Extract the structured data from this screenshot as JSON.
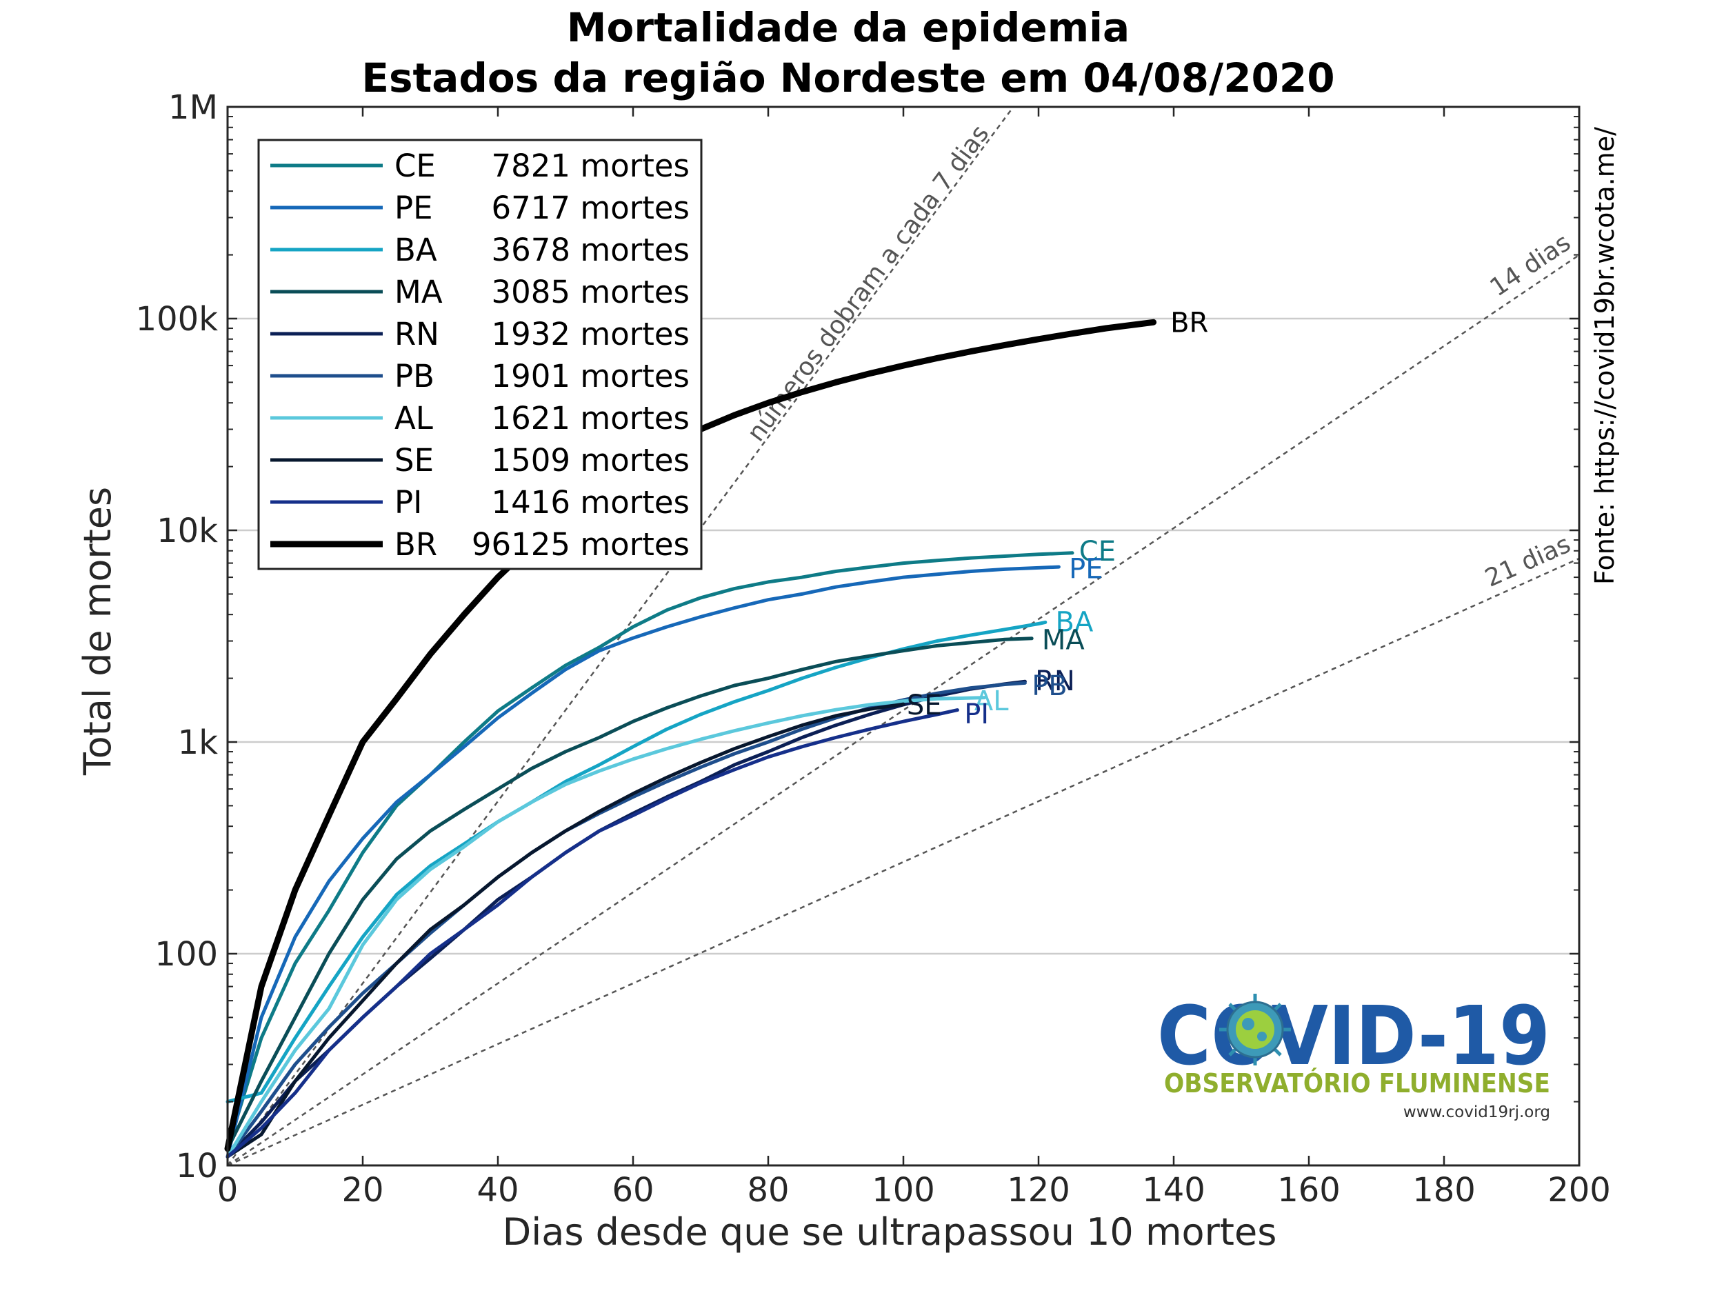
{
  "chart_data": {
    "type": "line",
    "title": "Mortalidade da epidemia",
    "subtitle": "Estados da região Nordeste em 04/08/2020",
    "xlabel": "Dias desde que se ultrapassou 10 mortes",
    "ylabel": "Total de mortes",
    "xlim": [
      0,
      200
    ],
    "ylim": [
      10,
      1000000
    ],
    "yscale": "log",
    "xticks": [
      0,
      20,
      40,
      60,
      80,
      100,
      120,
      140,
      160,
      180,
      200
    ],
    "xtick_labels": [
      "0",
      "20",
      "40",
      "60",
      "80",
      "100",
      "120",
      "140",
      "160",
      "180",
      "200"
    ],
    "yticks": [
      10,
      100,
      1000,
      10000,
      100000,
      1000000
    ],
    "ytick_labels": [
      "10",
      "100",
      "1k",
      "10k",
      "100k",
      "1M"
    ],
    "grid": "horizontal",
    "legend_position": "top-left",
    "series": [
      {
        "name": "CE",
        "label": "7821 mortes",
        "color": "#0e7b87",
        "width": 5,
        "x": [
          0,
          5,
          10,
          15,
          20,
          25,
          30,
          35,
          40,
          45,
          50,
          55,
          60,
          65,
          70,
          75,
          80,
          85,
          90,
          95,
          100,
          105,
          110,
          115,
          120,
          125
        ],
        "y": [
          12,
          40,
          90,
          160,
          300,
          500,
          700,
          1000,
          1400,
          1800,
          2300,
          2800,
          3500,
          4200,
          4800,
          5300,
          5700,
          6000,
          6400,
          6700,
          7000,
          7200,
          7400,
          7550,
          7700,
          7821
        ]
      },
      {
        "name": "PE",
        "label": "6717 mortes",
        "color": "#1668b8",
        "width": 5,
        "x": [
          0,
          5,
          10,
          15,
          20,
          25,
          30,
          35,
          40,
          45,
          50,
          55,
          60,
          65,
          70,
          75,
          80,
          85,
          90,
          95,
          100,
          105,
          110,
          115,
          120,
          123
        ],
        "y": [
          11,
          50,
          120,
          220,
          350,
          520,
          700,
          950,
          1300,
          1700,
          2200,
          2700,
          3100,
          3500,
          3900,
          4300,
          4700,
          5000,
          5400,
          5700,
          6000,
          6200,
          6400,
          6550,
          6650,
          6717
        ]
      },
      {
        "name": "BA",
        "label": "3678 mortes",
        "color": "#15a4c4",
        "width": 5,
        "x": [
          0,
          5,
          10,
          15,
          20,
          25,
          30,
          35,
          40,
          45,
          50,
          55,
          60,
          65,
          70,
          75,
          80,
          85,
          90,
          95,
          100,
          105,
          110,
          115,
          120,
          121
        ],
        "y": [
          20,
          22,
          40,
          70,
          120,
          190,
          260,
          330,
          420,
          520,
          650,
          780,
          950,
          1150,
          1350,
          1550,
          1750,
          2000,
          2250,
          2500,
          2750,
          3000,
          3200,
          3400,
          3620,
          3678
        ]
      },
      {
        "name": "MA",
        "label": "3085 mortes",
        "color": "#0a4d57",
        "width": 5,
        "x": [
          0,
          5,
          10,
          15,
          20,
          25,
          30,
          35,
          40,
          45,
          50,
          55,
          60,
          65,
          70,
          75,
          80,
          85,
          90,
          95,
          100,
          105,
          110,
          115,
          119
        ],
        "y": [
          12,
          25,
          50,
          100,
          180,
          280,
          380,
          480,
          600,
          750,
          900,
          1050,
          1250,
          1450,
          1650,
          1850,
          2000,
          2200,
          2400,
          2550,
          2700,
          2850,
          2950,
          3050,
          3085
        ]
      },
      {
        "name": "RN",
        "label": "1932 mortes",
        "color": "#0b1f55",
        "width": 5,
        "x": [
          0,
          5,
          10,
          15,
          20,
          25,
          30,
          35,
          40,
          45,
          50,
          55,
          60,
          65,
          70,
          75,
          80,
          85,
          90,
          95,
          100,
          105,
          110,
          115,
          118
        ],
        "y": [
          11,
          16,
          25,
          35,
          50,
          70,
          95,
          130,
          180,
          230,
          300,
          380,
          460,
          550,
          650,
          780,
          900,
          1050,
          1200,
          1350,
          1500,
          1650,
          1780,
          1880,
          1932
        ]
      },
      {
        "name": "PB",
        "label": "1901 mortes",
        "color": "#1e4e8c",
        "width": 5,
        "x": [
          0,
          5,
          10,
          15,
          20,
          25,
          30,
          35,
          40,
          45,
          50,
          55,
          60,
          65,
          70,
          75,
          80,
          85,
          90,
          95,
          100,
          105,
          110,
          115,
          118
        ],
        "y": [
          11,
          18,
          30,
          45,
          65,
          90,
          125,
          170,
          230,
          300,
          380,
          460,
          550,
          650,
          760,
          880,
          1000,
          1150,
          1300,
          1450,
          1580,
          1700,
          1800,
          1870,
          1901
        ]
      },
      {
        "name": "AL",
        "label": "1621 mortes",
        "color": "#5bc8dc",
        "width": 5,
        "x": [
          0,
          5,
          10,
          15,
          20,
          25,
          30,
          35,
          40,
          45,
          50,
          55,
          60,
          65,
          70,
          75,
          80,
          85,
          90,
          95,
          100,
          105,
          110,
          112
        ],
        "y": [
          11,
          20,
          35,
          55,
          110,
          180,
          250,
          320,
          420,
          520,
          630,
          730,
          830,
          930,
          1030,
          1130,
          1230,
          1330,
          1420,
          1500,
          1560,
          1600,
          1615,
          1621
        ]
      },
      {
        "name": "SE",
        "label": "1509 mortes",
        "color": "#07172e",
        "width": 5,
        "x": [
          0,
          5,
          10,
          15,
          20,
          25,
          30,
          35,
          40,
          45,
          50,
          55,
          60,
          65,
          70,
          75,
          80,
          85,
          90,
          95,
          100
        ],
        "y": [
          11,
          14,
          25,
          40,
          60,
          90,
          130,
          170,
          230,
          300,
          380,
          470,
          570,
          680,
          800,
          930,
          1060,
          1200,
          1330,
          1430,
          1509
        ]
      },
      {
        "name": "PI",
        "label": "1416 mortes",
        "color": "#152f8a",
        "width": 5,
        "x": [
          0,
          5,
          10,
          15,
          20,
          25,
          30,
          35,
          40,
          45,
          50,
          55,
          60,
          65,
          70,
          75,
          80,
          85,
          90,
          95,
          100,
          105,
          108
        ],
        "y": [
          11,
          15,
          22,
          35,
          50,
          70,
          100,
          130,
          170,
          230,
          300,
          380,
          450,
          540,
          640,
          740,
          850,
          950,
          1050,
          1150,
          1250,
          1350,
          1416
        ]
      },
      {
        "name": "BR",
        "label": "96125 mortes",
        "color": "#000000",
        "width": 9,
        "x": [
          0,
          5,
          10,
          15,
          20,
          25,
          30,
          35,
          40,
          45,
          50,
          55,
          60,
          65,
          70,
          75,
          80,
          85,
          90,
          95,
          100,
          105,
          110,
          115,
          120,
          125,
          130,
          137
        ],
        "y": [
          12,
          70,
          200,
          450,
          1000,
          1600,
          2600,
          4000,
          6000,
          8500,
          11500,
          15000,
          20000,
          25000,
          30000,
          35000,
          40000,
          45000,
          50000,
          55000,
          60000,
          65000,
          70000,
          75000,
          80000,
          85000,
          90000,
          96125
        ]
      }
    ],
    "end_labels": [
      {
        "text": "CE",
        "x": 126,
        "y": 8000,
        "color": "#0e7b87"
      },
      {
        "text": "PE",
        "x": 124.5,
        "y": 6600,
        "color": "#1668b8"
      },
      {
        "text": "BA",
        "x": 122.5,
        "y": 3700,
        "color": "#15a4c4"
      },
      {
        "text": "MA",
        "x": 120.5,
        "y": 3050,
        "color": "#0a4d57"
      },
      {
        "text": "RN",
        "x": 119.5,
        "y": 1950,
        "color": "#0b1f55"
      },
      {
        "text": "PB",
        "x": 119,
        "y": 1850,
        "color": "#1e4e8c"
      },
      {
        "text": "AL",
        "x": 110.5,
        "y": 1570,
        "color": "#5bc8dc"
      },
      {
        "text": "SE",
        "x": 100.5,
        "y": 1500,
        "color": "#07172e"
      },
      {
        "text": "PI",
        "x": 109,
        "y": 1360,
        "color": "#152f8a"
      },
      {
        "text": "BR",
        "x": 139.5,
        "y": 96125,
        "color": "#000000"
      }
    ],
    "reference_lines": [
      {
        "doubling_days": 7,
        "label": "números dobram a cada 7 dias"
      },
      {
        "doubling_days": 14,
        "label": "14 dias"
      },
      {
        "doubling_days": 21,
        "label": "21 dias"
      }
    ],
    "source_text": "Fonte: https://covid19br.wcota.me/"
  },
  "logo": {
    "name": "COVID-19",
    "subtitle": "OBSERVATÓRIO FLUMINENSE",
    "url": "www.covid19rj.org"
  }
}
